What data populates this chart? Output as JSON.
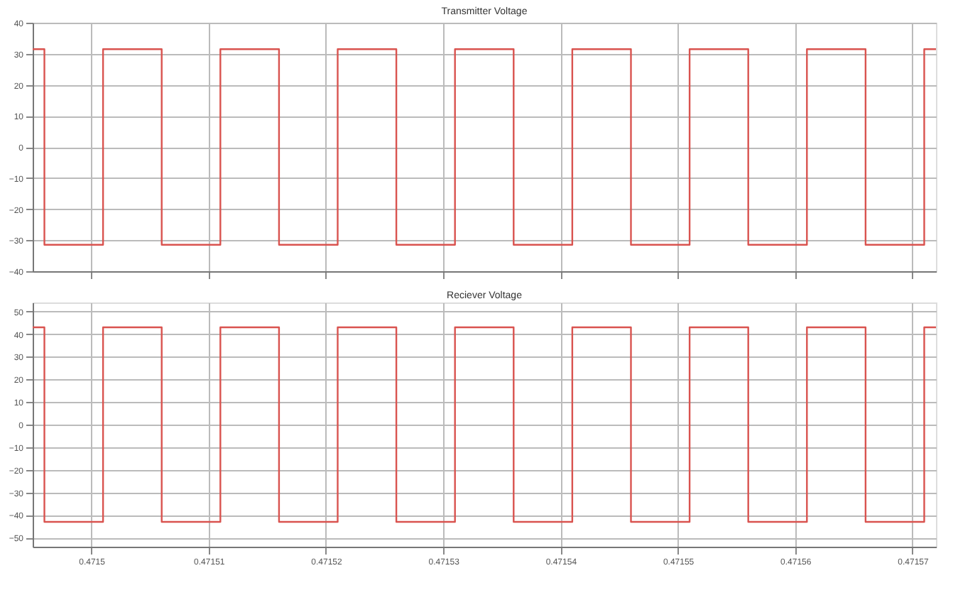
{
  "chart_data": [
    {
      "type": "step",
      "title": "Transmitter Voltage",
      "x": [
        0.471495,
        0.471496,
        0.471501,
        0.471506,
        0.471511,
        0.471516,
        0.471521,
        0.471526,
        0.471531,
        0.471536,
        0.471541,
        0.471546,
        0.471551,
        0.471556,
        0.471561,
        0.471566,
        0.471571,
        0.471572
      ],
      "series": [
        {
          "color": "#d9534f",
          "values": [
            31.5,
            -31.5,
            31.5,
            -31.5,
            31.5,
            -31.5,
            31.5,
            -31.5,
            31.5,
            -31.5,
            31.5,
            -31.5,
            31.5,
            -31.5,
            31.5,
            -31.5,
            31.5,
            31.5
          ]
        }
      ],
      "xlim": [
        0.471495,
        0.471572
      ],
      "xticks": [
        0.4715,
        0.47151,
        0.47152,
        0.47153,
        0.47154,
        0.47155,
        0.47156,
        0.47157
      ],
      "ylim": [
        -40,
        40
      ],
      "yticks": [
        -40,
        -30,
        -20,
        -10,
        0,
        10,
        20,
        30,
        40
      ],
      "grid": true,
      "tick_labels": "y"
    },
    {
      "type": "step",
      "title": "Reciever Voltage",
      "x": [
        0.471495,
        0.471496,
        0.471501,
        0.471506,
        0.471511,
        0.471516,
        0.471521,
        0.471526,
        0.471531,
        0.471536,
        0.471541,
        0.471546,
        0.471551,
        0.471556,
        0.471561,
        0.471566,
        0.471571,
        0.471572
      ],
      "series": [
        {
          "color": "#d9534f",
          "values": [
            43,
            -43,
            43,
            -43,
            43,
            -43,
            43,
            -43,
            43,
            -43,
            43,
            -43,
            43,
            -43,
            43,
            -43,
            43,
            43
          ]
        }
      ],
      "xlim": [
        0.471495,
        0.471572
      ],
      "xticks": [
        0.4715,
        0.47151,
        0.47152,
        0.47153,
        0.47154,
        0.47155,
        0.47156,
        0.47157
      ],
      "ylim": [
        -54,
        54
      ],
      "yticks": [
        -50,
        -40,
        -30,
        -20,
        -10,
        0,
        10,
        20,
        30,
        40,
        50
      ],
      "grid": true
    }
  ]
}
